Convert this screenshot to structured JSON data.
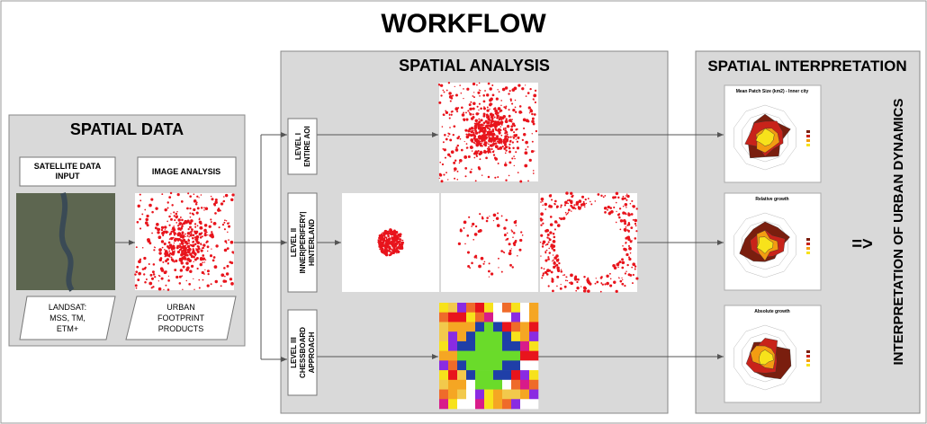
{
  "title": "WORKFLOW",
  "spatial_data": {
    "title": "SPATIAL DATA",
    "input": {
      "lines": [
        "SATELLITE DATA",
        "INPUT"
      ]
    },
    "analysis": {
      "lines": [
        "IMAGE ANALYSIS"
      ]
    },
    "source": {
      "lines": [
        "LANDSAT:",
        "MSS, TM,",
        "ETM+"
      ]
    },
    "product": {
      "lines": [
        "URBAN",
        "FOOTPRINT",
        "PRODUCTS"
      ]
    }
  },
  "spatial_analysis": {
    "title": "SPATIAL ANALYSIS",
    "levels": [
      {
        "lines": [
          "LEVEL I",
          "ENTIRE AOI"
        ]
      },
      {
        "lines": [
          "LEVEL II",
          "INNER|PERIFERY|",
          "HINTERLAND"
        ]
      },
      {
        "lines": [
          "LEVEL III",
          "CHESSBOARD",
          "APPROACH"
        ]
      }
    ]
  },
  "spatial_interpretation": {
    "title": "SPATIAL INTERPRETATION",
    "charts": [
      {
        "title": "Mean Patch Size (km2) - Inner city"
      },
      {
        "title": "Relative growth"
      },
      {
        "title": "Absolute growth"
      }
    ],
    "arrow": "=>",
    "conclusion": "INTERPRETATION OF URBAN DYNAMICS"
  }
}
